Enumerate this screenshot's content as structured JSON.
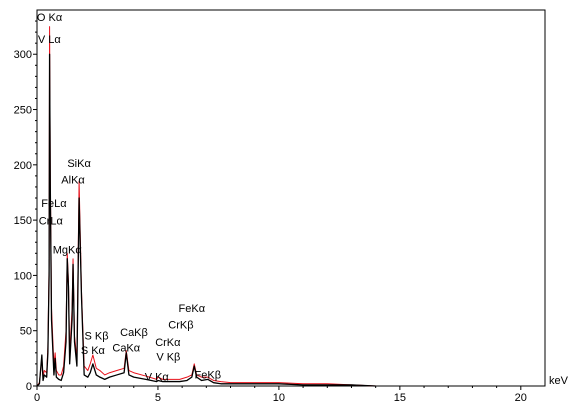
{
  "chart_data": {
    "type": "line",
    "title": "",
    "xlabel": "keV",
    "ylabel": "",
    "xlim": [
      0,
      21
    ],
    "ylim": [
      0,
      340
    ],
    "grid": false,
    "x_ticks": [
      0,
      5,
      10,
      15,
      20
    ],
    "y_ticks": [
      0,
      50,
      100,
      150,
      200,
      250,
      300
    ],
    "x_tick_labels": [
      "0",
      "5",
      "10",
      "15",
      "20"
    ],
    "y_tick_labels": [
      "0",
      "50",
      "100",
      "150",
      "200",
      "250",
      "300"
    ],
    "colors": {
      "spectrum_a": "#000000",
      "spectrum_b": "#e8101a"
    },
    "series": [
      {
        "x": [
          0.0,
          0.1,
          0.2,
          0.25,
          0.3,
          0.4,
          0.45,
          0.5,
          0.52,
          0.55,
          0.6,
          0.7,
          0.75,
          0.8,
          0.9,
          1.0,
          1.1,
          1.2,
          1.25,
          1.3,
          1.35,
          1.45,
          1.49,
          1.55,
          1.65,
          1.74,
          1.84,
          1.95,
          2.1,
          2.2,
          2.31,
          2.45,
          2.6,
          2.8,
          3.0,
          3.3,
          3.6,
          3.69,
          3.8,
          4.0,
          4.5,
          4.95,
          5.0,
          5.2,
          5.4,
          5.6,
          5.9,
          6.2,
          6.4,
          6.5,
          6.6,
          6.8,
          7.06,
          7.3,
          7.6,
          8.0,
          9.0,
          10.0,
          11.0,
          12.0,
          13.0,
          14.0
        ],
        "values": [
          0,
          2,
          28,
          5,
          10,
          8,
          30,
          100,
          300,
          180,
          60,
          10,
          25,
          8,
          6,
          5,
          12,
          40,
          115,
          90,
          20,
          60,
          110,
          40,
          18,
          170,
          80,
          10,
          8,
          12,
          20,
          10,
          8,
          6,
          8,
          10,
          12,
          30,
          10,
          8,
          6,
          4,
          5,
          4,
          4,
          4,
          4,
          5,
          8,
          18,
          8,
          5,
          6,
          3,
          2,
          2,
          2,
          2,
          1,
          1,
          1,
          0
        ]
      },
      {
        "x": [
          0.0,
          0.1,
          0.2,
          0.25,
          0.3,
          0.4,
          0.45,
          0.5,
          0.52,
          0.55,
          0.6,
          0.7,
          0.75,
          0.8,
          0.9,
          1.0,
          1.1,
          1.2,
          1.25,
          1.3,
          1.35,
          1.45,
          1.49,
          1.55,
          1.65,
          1.74,
          1.84,
          1.95,
          2.1,
          2.2,
          2.31,
          2.45,
          2.6,
          2.8,
          3.0,
          3.3,
          3.6,
          3.69,
          3.8,
          4.0,
          4.5,
          4.95,
          5.0,
          5.2,
          5.4,
          5.6,
          5.9,
          6.2,
          6.4,
          6.5,
          6.6,
          6.8,
          7.06,
          7.3,
          7.6,
          8.0,
          9.0,
          10.0,
          11.0,
          12.0,
          13.0,
          14.0
        ],
        "values": [
          0,
          3,
          25,
          8,
          14,
          12,
          35,
          110,
          325,
          190,
          70,
          18,
          30,
          14,
          10,
          10,
          18,
          50,
          120,
          95,
          28,
          70,
          115,
          45,
          25,
          185,
          85,
          18,
          14,
          20,
          28,
          16,
          14,
          10,
          12,
          14,
          16,
          32,
          14,
          12,
          9,
          6,
          8,
          6,
          6,
          6,
          6,
          8,
          10,
          20,
          10,
          8,
          8,
          5,
          4,
          3,
          3,
          3,
          2,
          2,
          1,
          0
        ]
      }
    ],
    "annotations": [
      {
        "text": "O Kα",
        "x": 0.52,
        "y": 330
      },
      {
        "text": "V Lα",
        "x": 0.51,
        "y": 310
      },
      {
        "text": "SiKα",
        "x": 1.74,
        "y": 198
      },
      {
        "text": "AlKα",
        "x": 1.49,
        "y": 183
      },
      {
        "text": "FeLα",
        "x": 0.7,
        "y": 162
      },
      {
        "text": "CrLα",
        "x": 0.57,
        "y": 146
      },
      {
        "text": "MgKα",
        "x": 1.25,
        "y": 120
      },
      {
        "text": "FeKα",
        "x": 6.4,
        "y": 67
      },
      {
        "text": "CrKβ",
        "x": 5.95,
        "y": 52
      },
      {
        "text": "S Kβ",
        "x": 2.46,
        "y": 42
      },
      {
        "text": "CaKβ",
        "x": 4.01,
        "y": 45
      },
      {
        "text": "CrKα",
        "x": 5.41,
        "y": 36
      },
      {
        "text": "S Kα",
        "x": 2.31,
        "y": 29
      },
      {
        "text": "CaKα",
        "x": 3.69,
        "y": 31
      },
      {
        "text": "V Kβ",
        "x": 5.43,
        "y": 23
      },
      {
        "text": "V Kα",
        "x": 4.95,
        "y": 5
      },
      {
        "text": "FeKβ",
        "x": 7.06,
        "y": 7
      }
    ]
  }
}
